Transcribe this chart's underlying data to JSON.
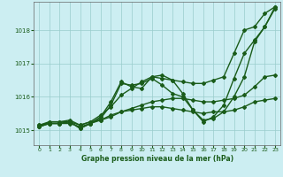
{
  "title": "Graphe pression niveau de la mer (hPa)",
  "bg_color": "#cceef2",
  "grid_color": "#99cccc",
  "line_color": "#1a5c1a",
  "xlim": [
    -0.5,
    23.5
  ],
  "ylim": [
    1014.55,
    1018.85
  ],
  "yticks": [
    1015,
    1016,
    1017,
    1018
  ],
  "xticks": [
    0,
    1,
    2,
    3,
    4,
    5,
    6,
    7,
    8,
    9,
    10,
    11,
    12,
    13,
    14,
    15,
    16,
    17,
    18,
    19,
    20,
    21,
    22,
    23
  ],
  "lines": [
    {
      "x": [
        0,
        1,
        2,
        3,
        4,
        5,
        6,
        7,
        8,
        9,
        10,
        11,
        12,
        13,
        14,
        15,
        16,
        17,
        18,
        19,
        20,
        21,
        22,
        23
      ],
      "y": [
        1015.15,
        1015.2,
        1015.2,
        1015.25,
        1015.15,
        1015.25,
        1015.45,
        1015.7,
        1016.05,
        1016.25,
        1016.45,
        1016.6,
        1016.55,
        1016.5,
        1016.45,
        1016.4,
        1016.4,
        1016.5,
        1016.6,
        1017.3,
        1018.0,
        1018.1,
        1018.5,
        1018.7
      ],
      "marker": "D",
      "markersize": 2.0,
      "linewidth": 1.0
    },
    {
      "x": [
        0,
        1,
        2,
        3,
        4,
        5,
        6,
        7,
        8,
        9,
        10,
        11,
        12,
        13,
        14,
        15,
        16,
        17,
        18,
        19,
        20,
        21,
        22,
        23
      ],
      "y": [
        1015.1,
        1015.2,
        1015.2,
        1015.25,
        1015.05,
        1015.2,
        1015.4,
        1015.85,
        1016.45,
        1016.3,
        1016.25,
        1016.6,
        1016.65,
        1016.5,
        1016.1,
        1015.6,
        1015.3,
        1015.35,
        1015.55,
        1016.0,
        1016.6,
        1017.65,
        1018.1,
        1018.65
      ],
      "marker": "D",
      "markersize": 2.0,
      "linewidth": 1.0
    },
    {
      "x": [
        0,
        1,
        2,
        3,
        4,
        5,
        6,
        7,
        8,
        9,
        10,
        11,
        12,
        13,
        14,
        15,
        16,
        17,
        18,
        19,
        20,
        21,
        22,
        23
      ],
      "y": [
        1015.1,
        1015.25,
        1015.25,
        1015.25,
        1015.05,
        1015.2,
        1015.35,
        1015.75,
        1016.4,
        1016.35,
        1016.4,
        1016.55,
        1016.35,
        1016.1,
        1016.0,
        1015.6,
        1015.25,
        1015.4,
        1015.75,
        1016.55,
        1017.3,
        1017.7,
        1018.1,
        1018.7
      ],
      "marker": "D",
      "markersize": 2.0,
      "linewidth": 1.0
    },
    {
      "x": [
        0,
        1,
        2,
        3,
        4,
        5,
        6,
        7,
        8,
        9,
        10,
        11,
        12,
        13,
        14,
        15,
        16,
        17,
        18,
        19,
        20,
        21,
        22,
        23
      ],
      "y": [
        1015.1,
        1015.2,
        1015.2,
        1015.2,
        1015.1,
        1015.2,
        1015.3,
        1015.4,
        1015.55,
        1015.65,
        1015.75,
        1015.85,
        1015.9,
        1015.95,
        1015.95,
        1015.9,
        1015.85,
        1015.85,
        1015.9,
        1015.95,
        1016.05,
        1016.3,
        1016.6,
        1016.65
      ],
      "marker": "D",
      "markersize": 2.0,
      "linewidth": 1.0
    },
    {
      "x": [
        0,
        1,
        2,
        3,
        4,
        5,
        6,
        7,
        8,
        9,
        10,
        11,
        12,
        13,
        14,
        15,
        16,
        17,
        18,
        19,
        20,
        21,
        22,
        23
      ],
      "y": [
        1015.15,
        1015.25,
        1015.25,
        1015.3,
        1015.15,
        1015.25,
        1015.3,
        1015.45,
        1015.55,
        1015.6,
        1015.65,
        1015.7,
        1015.7,
        1015.65,
        1015.6,
        1015.55,
        1015.5,
        1015.55,
        1015.55,
        1015.6,
        1015.7,
        1015.85,
        1015.9,
        1015.95
      ],
      "marker": "D",
      "markersize": 2.0,
      "linewidth": 1.0
    }
  ]
}
